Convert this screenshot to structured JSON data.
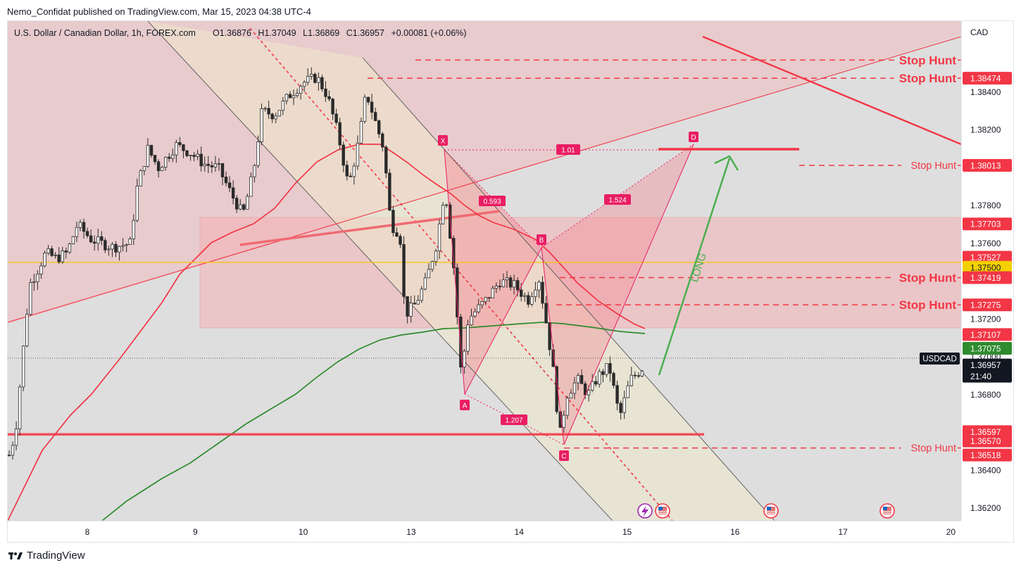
{
  "header": {
    "published_by": "Nemo_Confidat published on TradingView.com, Mar 15, 2023 04:38 UTC-4"
  },
  "legend": {
    "symbol": "U.S. Dollar / Canadian Dollar, 1h, FOREX.com",
    "open_label": "O",
    "open": "1.36876",
    "high_label": "H",
    "high": "1.37049",
    "low_label": "L",
    "low": "1.36869",
    "close_label": "C",
    "close": "1.36957",
    "change": "+0.00081 (+0.06%)"
  },
  "footer": {
    "brand": "TradingView"
  },
  "colors": {
    "up_candle": "#ffffff",
    "down_candle": "#2a2a2a",
    "resistance_red": "#f23645",
    "ema_red": "#f23645",
    "ma_green": "#2e8b2e",
    "yellow_line": "#f5c518",
    "long_arrow": "#4caf50"
  },
  "chart_data": {
    "type": "candlestick",
    "symbol": "USDCAD",
    "interval": "1h",
    "currency": "CAD",
    "x_tick_labels": [
      "8",
      "9",
      "10",
      "13",
      "14",
      "15",
      "16",
      "17",
      "20"
    ],
    "y_tick_labels": [
      "1.38400",
      "1.38200",
      "1.37800",
      "1.37600",
      "1.37200",
      "1.37000",
      "1.36800",
      "1.36400",
      "1.36200"
    ],
    "ylim": [
      1.3612,
      1.3858
    ],
    "price_badges": [
      {
        "label": "1.38474",
        "type": "red"
      },
      {
        "label": "1.38013",
        "type": "red"
      },
      {
        "label": "1.37703",
        "type": "red"
      },
      {
        "label": "1.37527",
        "type": "red"
      },
      {
        "label": "1.37500",
        "type": "yellow"
      },
      {
        "label": "1.37419",
        "type": "red"
      },
      {
        "label": "1.37275",
        "type": "red"
      },
      {
        "label": "1.37107",
        "type": "red"
      },
      {
        "label": "1.37075",
        "type": "green"
      },
      {
        "label": "1.36957",
        "type": "dark"
      },
      {
        "label": "21:40",
        "type": "dark"
      },
      {
        "label": "1.36597",
        "type": "red"
      },
      {
        "label": "1.36570",
        "type": "red"
      },
      {
        "label": "1.36518",
        "type": "red"
      }
    ],
    "symbol_tag": "USDCAD",
    "stop_hunt_label": "Stop Hunt",
    "stop_hunt_levels": [
      1.3857,
      1.38474,
      1.38013,
      1.37419,
      1.37275,
      1.36518
    ],
    "harmonic_pattern": {
      "points": [
        {
          "label": "X",
          "price": 1.3802
        },
        {
          "label": "A",
          "price": 1.3678
        },
        {
          "label": "B",
          "price": 1.3749
        },
        {
          "label": "C",
          "price": 1.3652
        },
        {
          "label": "D",
          "price": 1.3801
        }
      ],
      "ratios": [
        "1.01",
        "0.593",
        "1.524",
        "1.207"
      ]
    },
    "annotation": "LONG",
    "horizontal_lines": [
      {
        "name": "yellow",
        "price": 1.375
      },
      {
        "name": "support",
        "price": 1.3659
      }
    ]
  }
}
